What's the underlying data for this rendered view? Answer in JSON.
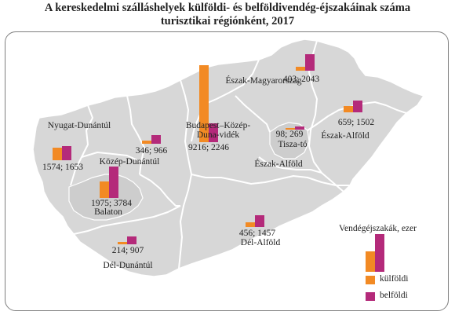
{
  "title_line1": "A kereskedelmi szálláshelyek külföldi- és belföldivendég-éjszakáinak száma",
  "title_line2": "turisztikai régiónként, 2017",
  "colors": {
    "kulfoldi": "#F28A24",
    "belfoldi": "#B42A7A",
    "land": "#D7D7D7",
    "border": "#ffffff",
    "frame": "#7f7f7f"
  },
  "legend": {
    "title": "Vendégéjszakák, ezer",
    "kulfoldi": "külföldi",
    "belfoldi": "belföldi"
  },
  "regions": [
    {
      "name": "Nyugat-Dunántúl",
      "value_label": "1574; 1653"
    },
    {
      "name": "Közép-Dunántúl",
      "value_label": "346; 966"
    },
    {
      "name": "Balaton",
      "value_label": "1975; 3784"
    },
    {
      "name": "Dél-Dunántúl",
      "value_label": "214; 907"
    },
    {
      "name": "Budapest–Közép-Duna-vidék",
      "value_label": "9216; 2246"
    },
    {
      "name": "Észak-Magyarország",
      "value_label": "403; 2043"
    },
    {
      "name": "Tisza-tó",
      "value_label": "98; 269"
    },
    {
      "name": "Észak-Alföld",
      "value_label": "659; 1502"
    },
    {
      "name": "Dél-Alföld",
      "value_label": "456; 1457"
    }
  ],
  "chart_data": {
    "type": "bar",
    "title": "A kereskedelmi szálláshelyek külföldi- és belföldivendég-éjszakáinak száma turisztikai régiónként, 2017",
    "unit": "Vendégéjszakák, ezer",
    "categories": [
      "Nyugat-Dunántúl",
      "Közép-Dunántúl",
      "Balaton",
      "Dél-Dunántúl",
      "Budapest–Közép-Duna-vidék",
      "Észak-Magyarország",
      "Tisza-tó",
      "Észak-Alföld",
      "Dél-Alföld"
    ],
    "series": [
      {
        "name": "külföldi",
        "values": [
          1574,
          346,
          1975,
          214,
          9216,
          403,
          98,
          659,
          456
        ]
      },
      {
        "name": "belföldi",
        "values": [
          1653,
          966,
          3784,
          907,
          2246,
          2043,
          269,
          1502,
          1457
        ]
      }
    ]
  }
}
